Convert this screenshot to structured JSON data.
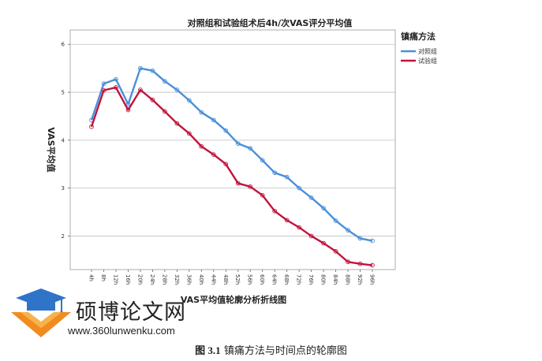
{
  "chart_data": {
    "type": "line",
    "title": "对照组和试验组术后4h/次VAS评分平均值",
    "xlabel": "VAS平均值轮廓分析折线图",
    "ylabel": "VAS平均值",
    "ylim": [
      1.3,
      6.3
    ],
    "yticks": [
      2,
      3,
      4,
      5,
      6
    ],
    "grid": true,
    "legend_position": "right",
    "legend_title": "镇痛方法",
    "categories": [
      "4h",
      "8h",
      "12h",
      "16h",
      "20h",
      "24h",
      "28h",
      "32h",
      "36h",
      "40h",
      "44h",
      "48h",
      "52h",
      "56h",
      "60h",
      "64h",
      "68h",
      "72h",
      "76h",
      "80h",
      "84h",
      "88h",
      "92h",
      "96h"
    ],
    "series": [
      {
        "name": "对照组",
        "color": "#4a8fd8",
        "values": [
          4.42,
          5.18,
          5.27,
          4.75,
          5.5,
          5.45,
          5.23,
          5.05,
          4.83,
          4.58,
          4.42,
          4.2,
          3.93,
          3.83,
          3.58,
          3.32,
          3.23,
          3.0,
          2.8,
          2.58,
          2.32,
          2.12,
          1.95,
          1.9
        ]
      },
      {
        "name": "试验组",
        "color": "#c0143c",
        "values": [
          4.28,
          5.04,
          5.1,
          4.63,
          5.05,
          4.84,
          4.6,
          4.35,
          4.14,
          3.87,
          3.7,
          3.5,
          3.1,
          3.03,
          2.85,
          2.52,
          2.33,
          2.18,
          2.0,
          1.85,
          1.68,
          1.46,
          1.42,
          1.39
        ]
      }
    ]
  },
  "watermark": {
    "name": "硕博论文网",
    "url": "www.360lunwenku.com"
  },
  "caption": {
    "label": "图 3.1",
    "text": "镇痛方法与时间点的轮廓图"
  }
}
